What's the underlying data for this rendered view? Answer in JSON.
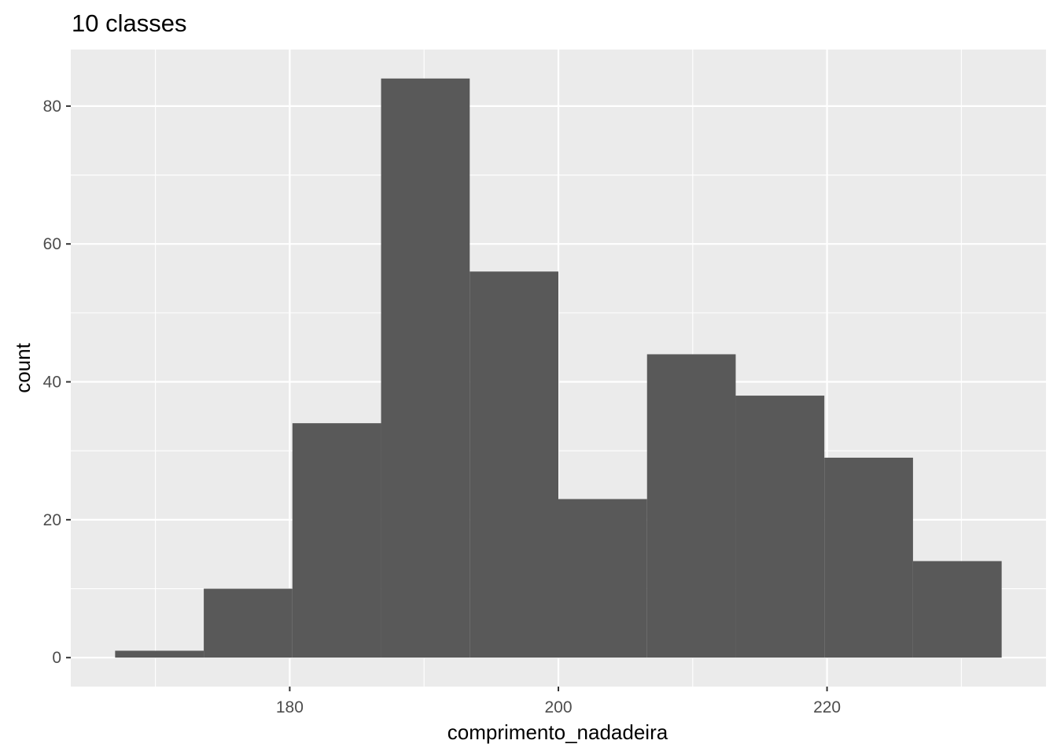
{
  "chart_data": {
    "type": "bar",
    "subtype": "histogram",
    "title": "10 classes",
    "xlabel": "comprimento_nadadeira",
    "ylabel": "count",
    "bins": [
      {
        "start": 167.0,
        "end": 173.6,
        "count": 1
      },
      {
        "start": 173.6,
        "end": 180.2,
        "count": 10
      },
      {
        "start": 180.2,
        "end": 186.8,
        "count": 34
      },
      {
        "start": 186.8,
        "end": 193.4,
        "count": 84
      },
      {
        "start": 193.4,
        "end": 200.0,
        "count": 56
      },
      {
        "start": 200.0,
        "end": 206.6,
        "count": 23
      },
      {
        "start": 206.6,
        "end": 213.2,
        "count": 44
      },
      {
        "start": 213.2,
        "end": 219.8,
        "count": 38
      },
      {
        "start": 219.8,
        "end": 226.4,
        "count": 29
      },
      {
        "start": 226.4,
        "end": 233.0,
        "count": 14
      }
    ],
    "xlim": [
      163.7,
      236.3
    ],
    "ylim": [
      -4.2,
      88.2
    ],
    "x_ticks": [
      180,
      200,
      220
    ],
    "x_tick_labels": [
      "180",
      "200",
      "220"
    ],
    "x_minor_ticks": [
      170,
      190,
      210,
      230
    ],
    "y_ticks": [
      0,
      20,
      40,
      60,
      80
    ],
    "y_tick_labels": [
      "0",
      "20",
      "40",
      "60",
      "80"
    ],
    "y_minor_ticks": [
      10,
      30,
      50,
      70
    ],
    "grid": true,
    "colors": {
      "bar": "#595959",
      "panel": "#ebebeb",
      "grid": "#ffffff",
      "tick_label": "#4d4d4d"
    }
  }
}
